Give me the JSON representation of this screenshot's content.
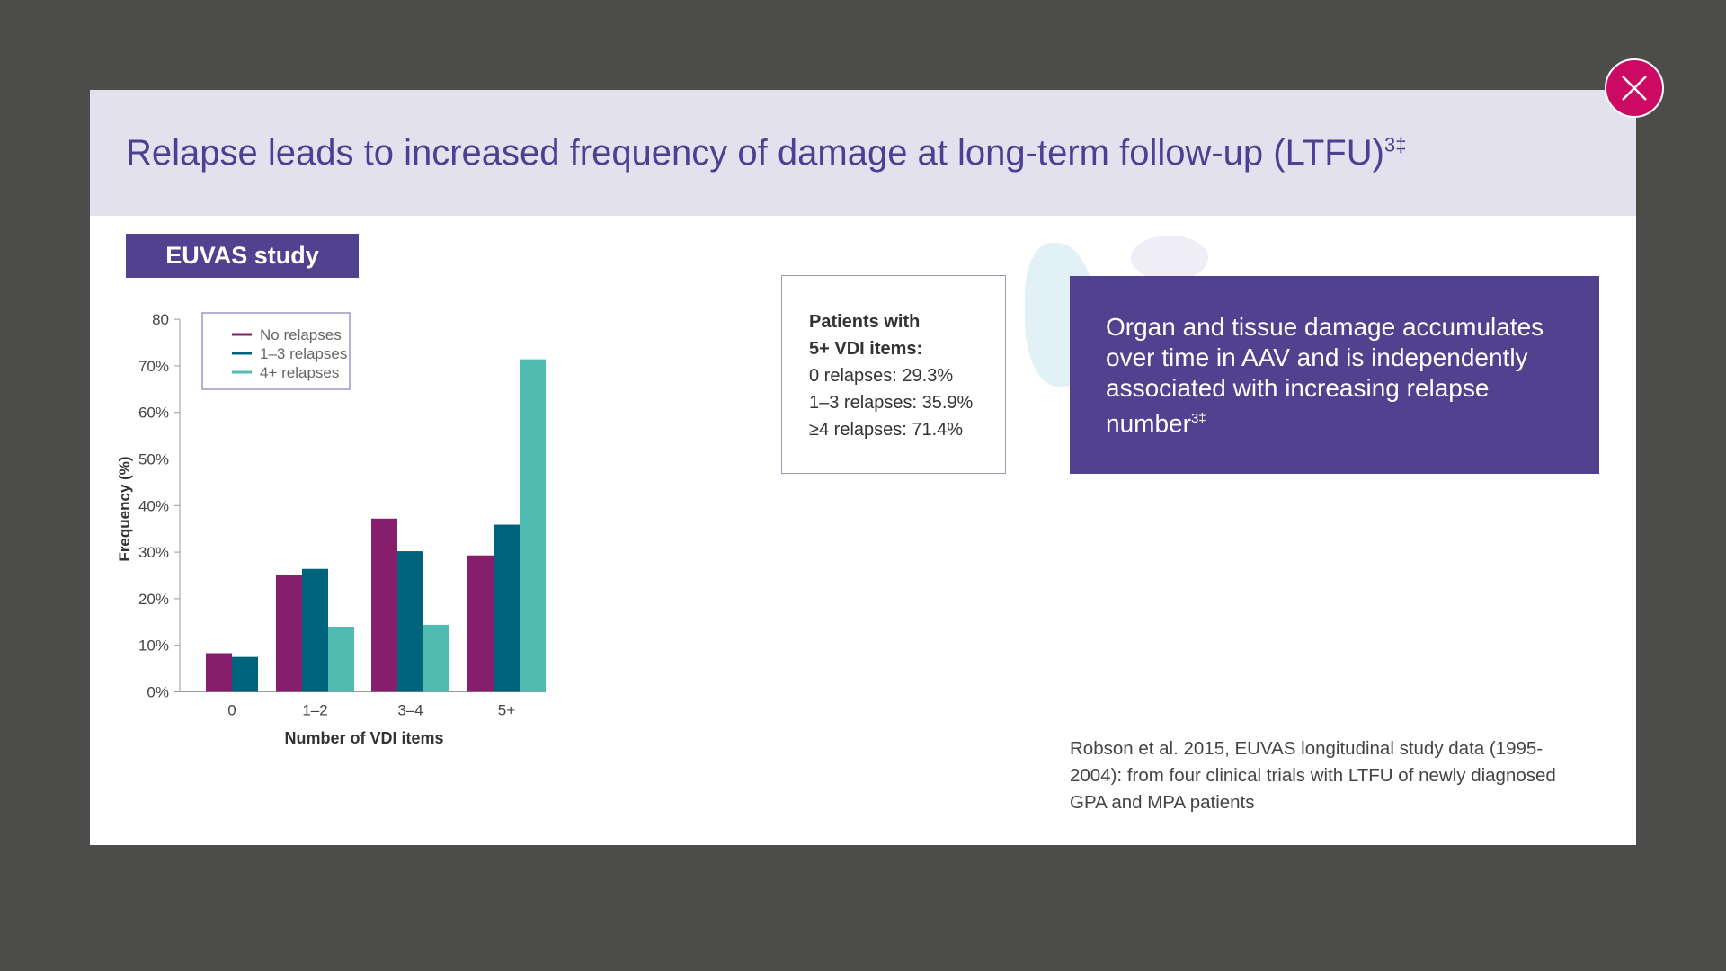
{
  "header": {
    "title": "Relapse leads to increased frequency of damage at long-term follow-up (LTFU)",
    "title_sup": "3‡"
  },
  "close_button": {
    "icon": "close-icon",
    "color": "#cc0a63"
  },
  "study_tag": "EUVAS study",
  "patients_box": {
    "heading_line1": "Patients with",
    "heading_line2": "5+ VDI items:",
    "lines": [
      "0 relapses: 29.3%",
      "1–3 relapses: 35.9%",
      "≥4 relapses: 71.4%"
    ]
  },
  "key_message": {
    "text": "Organ and tissue damage accumulates over time in AAV and is independently associated with increasing relapse number",
    "sup": "3‡"
  },
  "reference": "Robson et al. 2015, EUVAS longitudinal study data (1995-2004): from four clinical trials with LTFU of newly diagnosed GPA and MPA patients",
  "chart_data": {
    "type": "bar",
    "xlabel": "Number of VDI items",
    "ylabel": "Frequency (%)",
    "ylim": [
      0,
      80
    ],
    "yticks": [
      "0%",
      "10%",
      "20%",
      "30%",
      "40%",
      "50%",
      "60%",
      "70%",
      "80"
    ],
    "categories": [
      "0",
      "1–2",
      "3–4",
      "5+"
    ],
    "legend_position": "top-left",
    "series": [
      {
        "name": "No relapses",
        "color": "#861e6b",
        "values": [
          8.3,
          25.0,
          37.2,
          29.3
        ]
      },
      {
        "name": "1–3 relapses",
        "color": "#00637c",
        "values": [
          7.5,
          26.4,
          30.2,
          35.9
        ]
      },
      {
        "name": "4+ relapses",
        "color": "#50bbb0",
        "values": [
          0,
          14.0,
          14.4,
          71.4
        ]
      }
    ]
  }
}
